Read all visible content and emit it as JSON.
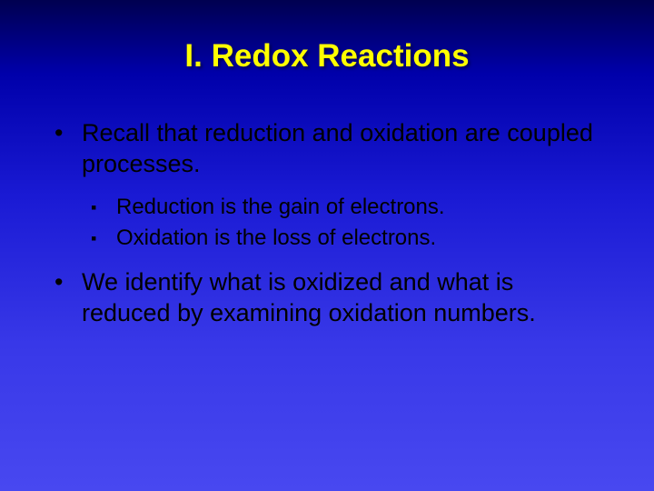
{
  "slide": {
    "title": "I. Redox Reactions",
    "bullets": {
      "b1": "Recall that reduction and oxidation are coupled processes.",
      "b1a": "Reduction is the gain of electrons.",
      "b1b": "Oxidation is the loss of electrons.",
      "b2": "We identify what is oxidized and what is reduced by examining oxidation numbers."
    },
    "markers": {
      "level1": "•",
      "level2": "▪"
    },
    "style": {
      "title_color": "#ffff00",
      "body_color": "#000000",
      "background_gradient_top": "#000050",
      "background_gradient_bottom": "#4848f0",
      "title_fontsize": 35,
      "body_l1_fontsize": 27,
      "body_l2_fontsize": 24,
      "font_family": "Arial"
    }
  }
}
